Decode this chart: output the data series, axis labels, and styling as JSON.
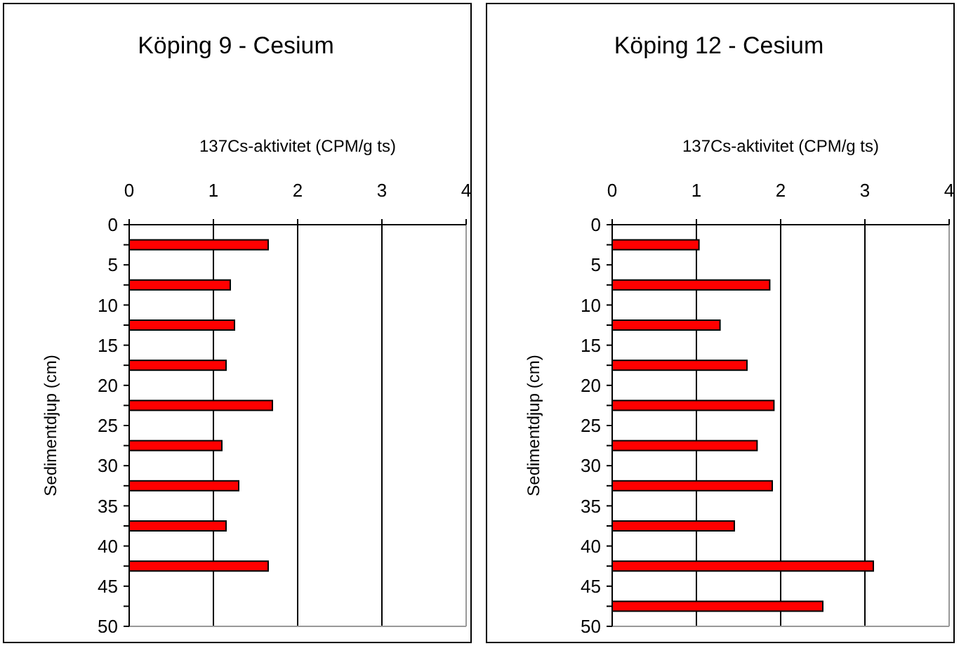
{
  "chart_data": [
    {
      "type": "bar",
      "orientation": "horizontal",
      "title": "Köping 9 - Cesium",
      "xlabel": "137Cs-aktivitet (CPM/g ts)",
      "ylabel": "Sedimentdjup (cm)",
      "x": [
        2.5,
        7.5,
        12.5,
        17.5,
        22.5,
        27.5,
        32.5,
        37.5,
        42.5
      ],
      "values": [
        1.65,
        1.2,
        1.25,
        1.15,
        1.7,
        1.1,
        1.3,
        1.15,
        1.65
      ],
      "color": "#ff0000",
      "xlim": [
        0,
        4
      ],
      "xticks": [
        0,
        1,
        2,
        3,
        4
      ],
      "ylim": [
        50,
        0
      ],
      "yticks": [
        0,
        {
          "value": 2.5,
          "label": null
        },
        5,
        {
          "value": 7.5,
          "label": null
        },
        10,
        {
          "value": 12.5,
          "label": null
        },
        15,
        {
          "value": 17.5,
          "label": null
        },
        20,
        {
          "value": 22.5,
          "label": null
        },
        25,
        {
          "value": 27.5,
          "label": null
        },
        30,
        {
          "value": 32.5,
          "label": null
        },
        35,
        {
          "value": 37.5,
          "label": null
        },
        40,
        {
          "value": 42.5,
          "label": null
        },
        45,
        {
          "value": 47.5,
          "label": null
        },
        50
      ],
      "grid": "x"
    },
    {
      "type": "bar",
      "orientation": "horizontal",
      "title": "Köping 12 - Cesium",
      "xlabel": "137Cs-aktivitet (CPM/g ts)",
      "ylabel": "Sedimentdjup (cm)",
      "x": [
        2.5,
        7.5,
        12.5,
        17.5,
        22.5,
        27.5,
        32.5,
        37.5,
        42.5,
        47.5
      ],
      "values": [
        1.03,
        1.87,
        1.28,
        1.6,
        1.92,
        1.72,
        1.9,
        1.45,
        3.1,
        2.5
      ],
      "color": "#ff0000",
      "xlim": [
        0,
        4
      ],
      "xticks": [
        0,
        1,
        2,
        3,
        4
      ],
      "ylim": [
        50,
        0
      ],
      "yticks": [
        0,
        {
          "value": 2.5,
          "label": null
        },
        5,
        {
          "value": 7.5,
          "label": null
        },
        10,
        {
          "value": 12.5,
          "label": null
        },
        15,
        {
          "value": 17.5,
          "label": null
        },
        20,
        {
          "value": 22.5,
          "label": null
        },
        25,
        {
          "value": 27.5,
          "label": null
        },
        30,
        {
          "value": 32.5,
          "label": null
        },
        35,
        {
          "value": 37.5,
          "label": null
        },
        40,
        {
          "value": 42.5,
          "label": null
        },
        45,
        {
          "value": 47.5,
          "label": null
        },
        50
      ],
      "grid": "x"
    }
  ]
}
